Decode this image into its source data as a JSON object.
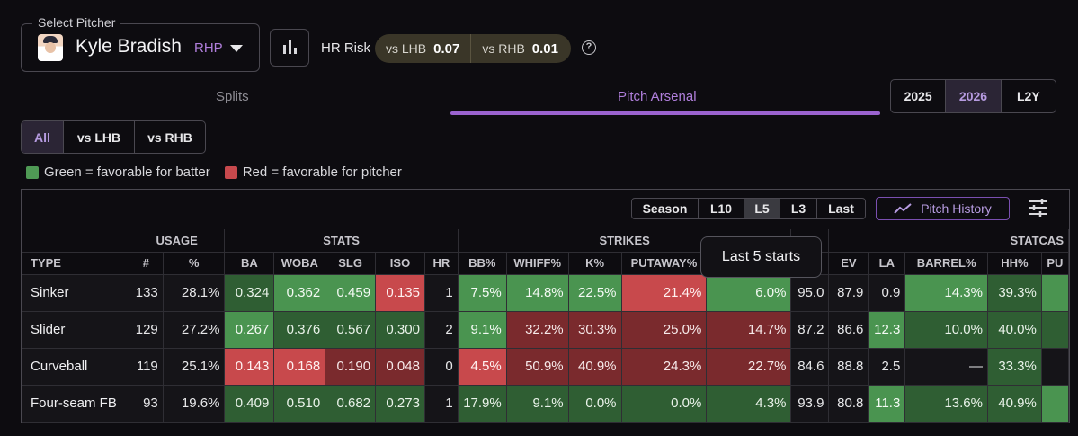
{
  "pitcher": {
    "label": "Select Pitcher",
    "name": "Kyle Bradish",
    "hand": "RHP"
  },
  "hr_risk": {
    "label": "HR Risk",
    "lhb_label": "vs LHB",
    "lhb_value": "0.07",
    "rhb_label": "vs RHB",
    "rhb_value": "0.01"
  },
  "tabs": {
    "splits": "Splits",
    "arsenal": "Pitch Arsenal",
    "active": "Pitch Arsenal"
  },
  "years": {
    "options": [
      "2025",
      "2026",
      "L2Y"
    ],
    "active": "2026"
  },
  "split_filter": {
    "options": [
      "All",
      "vs LHB",
      "vs RHB"
    ],
    "active": "All"
  },
  "legend": {
    "green": "Green = favorable for batter",
    "red": "Red = favorable for pitcher",
    "green_color": "#4f9a55",
    "red_color": "#c7494d"
  },
  "periods": {
    "options": [
      "Season",
      "L10",
      "L5",
      "L3",
      "Last"
    ],
    "active": "L5"
  },
  "pitch_history": "Pitch History",
  "tooltip": "Last 5 starts",
  "table": {
    "groups": [
      "",
      "USAGE",
      "STATS",
      "STRIKES",
      "",
      "STATCAS"
    ],
    "columns": [
      "TYPE",
      "#",
      "%",
      "BA",
      "WOBA",
      "SLG",
      "ISO",
      "HR",
      "BB%",
      "WHIFF%",
      "K%",
      "PUTAWAY%",
      "",
      "",
      "EV",
      "LA",
      "BARREL%",
      "HH%",
      "PU"
    ],
    "rows": [
      {
        "cells": [
          "Sinker",
          "133",
          "28.1%",
          "0.324",
          "0.362",
          "0.459",
          "0.135",
          "1",
          "7.5%",
          "14.8%",
          "22.5%",
          "21.4%",
          "6.0%",
          "95.0",
          "87.9",
          "0.9",
          "14.3%",
          "39.3%",
          ""
        ],
        "tones": [
          "n",
          "n",
          "n",
          "g1",
          "g2",
          "g2",
          "r2",
          "n",
          "g2",
          "g2",
          "g2",
          "r2",
          "g2",
          "n",
          "n",
          "n",
          "g2",
          "g1",
          "g2"
        ]
      },
      {
        "cells": [
          "Slider",
          "129",
          "27.2%",
          "0.267",
          "0.376",
          "0.567",
          "0.300",
          "2",
          "9.1%",
          "32.2%",
          "30.3%",
          "25.0%",
          "14.7%",
          "87.2",
          "86.6",
          "12.3",
          "10.0%",
          "40.0%",
          ""
        ],
        "tones": [
          "n",
          "n",
          "n",
          "g2",
          "g1",
          "g1",
          "g1",
          "n",
          "g2",
          "r1",
          "r1",
          "r1",
          "r1",
          "n",
          "n",
          "g2",
          "g1",
          "g1",
          "g1"
        ]
      },
      {
        "cells": [
          "Curveball",
          "119",
          "25.1%",
          "0.143",
          "0.168",
          "0.190",
          "0.048",
          "0",
          "4.5%",
          "50.9%",
          "40.9%",
          "24.3%",
          "22.7%",
          "84.6",
          "88.8",
          "2.5",
          "—",
          "33.3%",
          ""
        ],
        "tones": [
          "n",
          "n",
          "n",
          "r2",
          "r2",
          "r1",
          "r1",
          "n",
          "r2",
          "r1",
          "r1",
          "r1",
          "r1",
          "n",
          "n",
          "n",
          "n",
          "g1",
          "n"
        ]
      },
      {
        "cells": [
          "Four-seam FB",
          "93",
          "19.6%",
          "0.409",
          "0.510",
          "0.682",
          "0.273",
          "1",
          "17.9%",
          "9.1%",
          "0.0%",
          "0.0%",
          "4.3%",
          "93.9",
          "80.8",
          "11.3",
          "13.6%",
          "40.9%",
          ""
        ],
        "tones": [
          "n",
          "n",
          "n",
          "g1",
          "g1",
          "g1",
          "g1",
          "n",
          "g1",
          "g1",
          "g1",
          "g1",
          "g1",
          "n",
          "n",
          "g2",
          "g1",
          "g1",
          "g2"
        ]
      }
    ]
  }
}
